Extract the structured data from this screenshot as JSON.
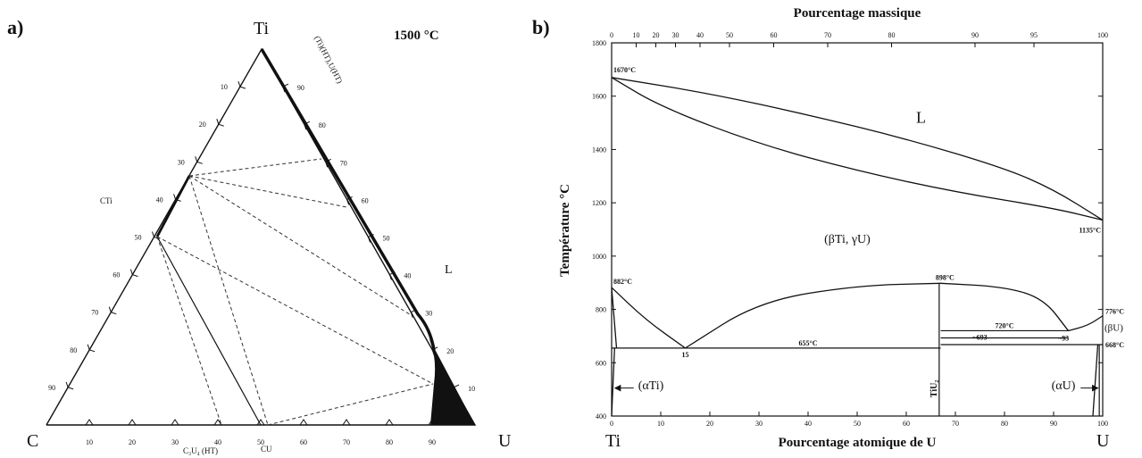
{
  "panel_a": {
    "letter": "a)",
    "temperature": "1500 °C",
    "vertex_top": "Ti",
    "vertex_left": "C",
    "vertex_right": "U",
    "right_side_ticks": [
      "90",
      "80",
      "70",
      "60",
      "50",
      "40",
      "30",
      "20",
      "10"
    ],
    "left_side_ticks": [
      "10",
      "20",
      "30",
      "40",
      "50",
      "60",
      "70",
      "80",
      "90"
    ],
    "bottom_ticks": [
      "10",
      "20",
      "30",
      "40",
      "50",
      "60",
      "70",
      "80",
      "90"
    ],
    "label_cti": "CTi",
    "label_cu": "CU",
    "label_c3u4": "C₃U₄ (HT)",
    "label_beta": "(Ti)(HT),U(HT)",
    "label_liquid": "L"
  },
  "chart_data": [
    {
      "type": "diagram",
      "title": "1500 °C",
      "vertices": {
        "top": "Ti",
        "left": "C",
        "right": "U"
      },
      "ticks": [
        10,
        20,
        30,
        40,
        50,
        60,
        70,
        80,
        90
      ],
      "phase_labels": [
        "CTi",
        "CU",
        "C₃U₄ (HT)",
        "(Ti)(HT),U(HT)",
        "L"
      ]
    },
    {
      "type": "line",
      "title": "",
      "xlabel": "Pourcentage atomique de U",
      "x2label": "Pourcentage massique",
      "ylabel": "Température °C",
      "xlim": [
        0,
        100
      ],
      "ylim": [
        400,
        1800
      ],
      "x_ticks": [
        0,
        10,
        20,
        30,
        40,
        50,
        60,
        70,
        80,
        90,
        100
      ],
      "x2_ticks": [
        "0",
        "10",
        "20",
        "30",
        "40",
        "50",
        "60",
        "70",
        "80",
        "90",
        "95",
        "100"
      ],
      "y_ticks": [
        400,
        600,
        800,
        1000,
        1200,
        1400,
        1600,
        1800
      ],
      "left_end_label": "Ti",
      "right_end_label": "U",
      "series": [
        {
          "x": [
            0,
            20,
            40,
            60,
            80,
            90,
            100
          ],
          "y": [
            1670,
            1610,
            1530,
            1440,
            1330,
            1250,
            1135
          ]
        },
        {
          "x": [
            0,
            10,
            30,
            50,
            70,
            90,
            100
          ],
          "y": [
            1670,
            1560,
            1420,
            1320,
            1240,
            1180,
            1135
          ]
        },
        {
          "x": [
            0,
            7,
            15
          ],
          "y": [
            882,
            760,
            655
          ]
        },
        {
          "x": [
            15,
            30,
            50,
            67
          ],
          "y": [
            655,
            830,
            890,
            898
          ]
        },
        {
          "x": [
            67,
            80,
            88,
            93
          ],
          "y": [
            898,
            885,
            840,
            720
          ]
        },
        {
          "x": [
            93,
            97,
            100
          ],
          "y": [
            720,
            740,
            776
          ]
        },
        {
          "x": [
            0,
            1
          ],
          "y": [
            882,
            655
          ]
        },
        {
          "x": [
            0,
            0.6
          ],
          "y": [
            400,
            655
          ]
        },
        {
          "x": [
            98,
            99
          ],
          "y": [
            400,
            668
          ]
        }
      ],
      "isotherms": [
        {
          "y": 655,
          "x_from": 0,
          "x_to": 67,
          "label": "655°C"
        },
        {
          "y": 720,
          "x_from": 67,
          "x_to": 93,
          "label": "720°C"
        },
        {
          "y": 668,
          "x_from": 67,
          "x_to": 100,
          "label": "668°C"
        }
      ],
      "special_labels": {
        "ti_melt": "1670°C",
        "u_melt": "1135°C",
        "ti_trans": "882°C",
        "congruent": "898°C",
        "eutectoid_x": "15",
        "u_trans": "776°C",
        "approx_693": "~693",
        "approx_93": "~93",
        "compound": "TiU₂",
        "field_liquid": "L",
        "field_beta": "(βTi,  γU)",
        "field_alpha_ti": "(αTi)",
        "field_alpha_u": "(αU)",
        "field_beta_u": "(βU)"
      }
    }
  ],
  "panel_b": {
    "letter": "b)"
  }
}
